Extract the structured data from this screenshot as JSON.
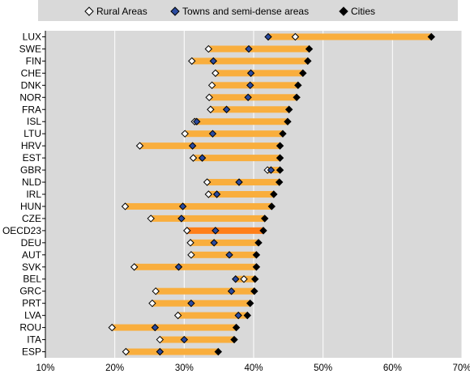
{
  "colors": {
    "range": "#f9ae3d",
    "range_highlight": "#ff7f1a",
    "rural_fill": "#ffffff",
    "towns_fill": "#2b4ba0",
    "cities_fill": "#000000",
    "background": "#d9d9d9"
  },
  "legend": {
    "rural": "Rural Areas",
    "towns": "Towns and semi-dense areas",
    "cities": "Cities"
  },
  "chart_data": {
    "type": "dot-range",
    "xlim": [
      10,
      70
    ],
    "ticks": [
      10,
      20,
      30,
      40,
      50,
      60,
      70
    ],
    "tick_suffix": "%",
    "grid": true,
    "legend_position": "top",
    "highlight": "OECD23",
    "series": [
      {
        "name": "Rural Areas",
        "key": "rural"
      },
      {
        "name": "Towns and semi-dense areas",
        "key": "towns"
      },
      {
        "name": "Cities",
        "key": "cities"
      }
    ],
    "rows": [
      {
        "country": "LUX",
        "rural": 46.0,
        "towns": 42.1,
        "cities": 65.6
      },
      {
        "country": "SWE",
        "rural": 33.5,
        "towns": 39.3,
        "cities": 48.0
      },
      {
        "country": "FIN",
        "rural": 31.1,
        "towns": 34.2,
        "cities": 47.8
      },
      {
        "country": "CHE",
        "rural": 34.5,
        "towns": 39.6,
        "cities": 47.1
      },
      {
        "country": "DNK",
        "rural": 34.0,
        "towns": 39.5,
        "cities": 46.4
      },
      {
        "country": "NOR",
        "rural": 33.6,
        "towns": 39.2,
        "cities": 46.2
      },
      {
        "country": "FRA",
        "rural": 33.8,
        "towns": 36.1,
        "cities": 45.1
      },
      {
        "country": "ISL",
        "rural": 31.5,
        "towns": 31.8,
        "cities": 44.9
      },
      {
        "country": "LTU",
        "rural": 30.1,
        "towns": 34.1,
        "cities": 44.2
      },
      {
        "country": "HRV",
        "rural": 23.6,
        "towns": 31.2,
        "cities": 43.8
      },
      {
        "country": "EST",
        "rural": 31.3,
        "towns": 32.6,
        "cities": 43.8
      },
      {
        "country": "GBR",
        "rural": 42.0,
        "towns": 42.5,
        "cities": 43.8
      },
      {
        "country": "NLD",
        "rural": 33.3,
        "towns": 37.9,
        "cities": 43.7
      },
      {
        "country": "IRL",
        "rural": 33.5,
        "towns": 34.7,
        "cities": 42.9
      },
      {
        "country": "HUN",
        "rural": 21.5,
        "towns": 29.8,
        "cities": 42.6
      },
      {
        "country": "CZE",
        "rural": 25.2,
        "towns": 29.6,
        "cities": 41.6
      },
      {
        "country": "OECD23",
        "rural": 30.4,
        "towns": 34.5,
        "cities": 41.4
      },
      {
        "country": "DEU",
        "rural": 30.9,
        "towns": 34.3,
        "cities": 40.7
      },
      {
        "country": "AUT",
        "rural": 31.0,
        "towns": 36.5,
        "cities": 40.4
      },
      {
        "country": "SVK",
        "rural": 22.8,
        "towns": 29.2,
        "cities": 40.4
      },
      {
        "country": "BEL",
        "rural": 38.6,
        "towns": 37.4,
        "cities": 40.2
      },
      {
        "country": "GRC",
        "rural": 25.9,
        "towns": 36.8,
        "cities": 40.1
      },
      {
        "country": "PRT",
        "rural": 25.4,
        "towns": 31.0,
        "cities": 39.5
      },
      {
        "country": "LVA",
        "rural": 29.1,
        "towns": 37.8,
        "cities": 39.1
      },
      {
        "country": "ROU",
        "rural": 19.6,
        "towns": 25.8,
        "cities": 37.5
      },
      {
        "country": "ITA",
        "rural": 26.5,
        "towns": 30.0,
        "cities": 37.2
      },
      {
        "country": "ESP",
        "rural": 21.6,
        "towns": 26.5,
        "cities": 34.9
      }
    ]
  }
}
